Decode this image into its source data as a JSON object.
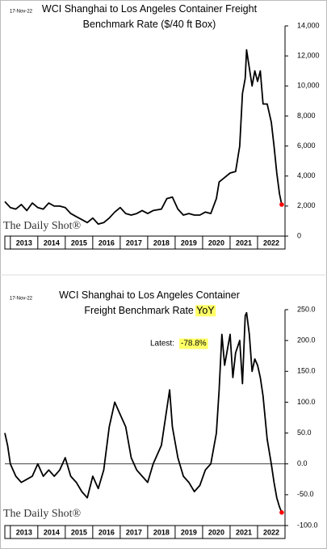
{
  "chart_data": [
    {
      "type": "line",
      "title": [
        "WCI Shanghai to Los Angeles Container Freight",
        "Benchmark Rate ($/40 ft Box)"
      ],
      "date_note": "17-Nov-22",
      "watermark": "The Daily Shot®",
      "x": [
        2012.8,
        2012.9,
        2013.0,
        2013.2,
        2013.4,
        2013.6,
        2013.8,
        2014.0,
        2014.2,
        2014.4,
        2014.6,
        2014.8,
        2015.0,
        2015.2,
        2015.4,
        2015.6,
        2015.8,
        2016.0,
        2016.2,
        2016.4,
        2016.6,
        2016.8,
        2017.0,
        2017.2,
        2017.4,
        2017.6,
        2017.8,
        2018.0,
        2018.2,
        2018.5,
        2018.7,
        2018.9,
        2019.1,
        2019.3,
        2019.5,
        2019.7,
        2019.9,
        2020.1,
        2020.3,
        2020.5,
        2020.6,
        2020.8,
        2021.0,
        2021.2,
        2021.35,
        2021.45,
        2021.55,
        2021.6,
        2021.7,
        2021.8,
        2021.9,
        2022.0,
        2022.1,
        2022.2,
        2022.35,
        2022.5,
        2022.6,
        2022.7,
        2022.8,
        2022.88
      ],
      "series": [
        {
          "color": "#000000",
          "end_marker_color": "#ff0000",
          "values": [
            2300,
            2100,
            1900,
            1800,
            2100,
            1700,
            2200,
            1900,
            1800,
            2200,
            2000,
            2000,
            1900,
            1500,
            1300,
            1100,
            900,
            1200,
            800,
            900,
            1200,
            1600,
            1900,
            1500,
            1400,
            1500,
            1700,
            1500,
            1700,
            1800,
            2500,
            2600,
            1800,
            1400,
            1500,
            1400,
            1400,
            1600,
            1500,
            2500,
            3600,
            3900,
            4200,
            4300,
            6000,
            9500,
            10500,
            12400,
            11200,
            10000,
            11000,
            10300,
            11000,
            8800,
            8800,
            7600,
            6000,
            4200,
            2800,
            2100
          ]
        }
      ],
      "xlim": [
        2012.8,
        2023.0
      ],
      "xticks": [
        {
          "value": 2013.5,
          "label": "2013"
        },
        {
          "value": 2014.5,
          "label": "2014"
        },
        {
          "value": 2015.5,
          "label": "2015"
        },
        {
          "value": 2016.5,
          "label": "2016"
        },
        {
          "value": 2017.5,
          "label": "2017"
        },
        {
          "value": 2018.5,
          "label": "2018"
        },
        {
          "value": 2019.5,
          "label": "2019"
        },
        {
          "value": 2020.5,
          "label": "2020"
        },
        {
          "value": 2021.5,
          "label": "2021"
        },
        {
          "value": 2022.5,
          "label": "2022"
        }
      ],
      "ylim": [
        0,
        14000
      ],
      "yticks": [
        0,
        {
          "value": 2000,
          "label": "2,000"
        },
        {
          "value": 4000,
          "label": "4,000"
        },
        {
          "value": 6000,
          "label": "6,000"
        },
        {
          "value": 8000,
          "label": "8,000"
        },
        {
          "value": 10000,
          "label": "10,000"
        },
        {
          "value": 12000,
          "label": "12,000"
        },
        {
          "value": 14000,
          "label": "14,000"
        }
      ]
    },
    {
      "type": "line",
      "title": [
        "WCI Shanghai to Los Angeles Container",
        "Freight Benchmark Rate"
      ],
      "title_highlight": "YoY",
      "date_note": "17-Nov-22",
      "watermark": "The Daily Shot®",
      "annotation": "Latest:",
      "x": [
        2012.8,
        2012.9,
        2013.0,
        2013.2,
        2013.4,
        2013.6,
        2013.8,
        2014.0,
        2014.2,
        2014.4,
        2014.6,
        2014.8,
        2015.0,
        2015.2,
        2015.4,
        2015.6,
        2015.8,
        2016.0,
        2016.2,
        2016.4,
        2016.6,
        2016.8,
        2017.0,
        2017.2,
        2017.4,
        2017.6,
        2017.8,
        2018.0,
        2018.2,
        2018.5,
        2018.7,
        2018.8,
        2018.9,
        2019.1,
        2019.3,
        2019.5,
        2019.7,
        2019.9,
        2020.1,
        2020.3,
        2020.5,
        2020.6,
        2020.7,
        2020.8,
        2021.0,
        2021.1,
        2021.2,
        2021.35,
        2021.45,
        2021.55,
        2021.6,
        2021.7,
        2021.8,
        2021.9,
        2022.0,
        2022.1,
        2022.2,
        2022.35,
        2022.5,
        2022.6,
        2022.7,
        2022.8,
        2022.88
      ],
      "series": [
        {
          "color": "#000000",
          "end_marker_color": "#ff0000",
          "values": [
            50,
            30,
            0,
            -20,
            -30,
            -25,
            -20,
            0,
            -20,
            -10,
            -20,
            -10,
            10,
            -20,
            -30,
            -45,
            -55,
            -20,
            -40,
            -10,
            60,
            100,
            80,
            60,
            10,
            -10,
            -20,
            -30,
            0,
            30,
            90,
            120,
            60,
            10,
            -20,
            -30,
            -45,
            -35,
            -10,
            0,
            50,
            120,
            210,
            160,
            210,
            140,
            180,
            200,
            130,
            240,
            245,
            210,
            150,
            170,
            160,
            140,
            110,
            40,
            0,
            -30,
            -55,
            -70,
            -78.8
          ],
          "value_labels": [
            null,
            null,
            null,
            null,
            null,
            null,
            null,
            null,
            null,
            null,
            null,
            null,
            null,
            null,
            null,
            null,
            null,
            null,
            null,
            null,
            null,
            null,
            null,
            null,
            null,
            null,
            null,
            null,
            null,
            null,
            null,
            null,
            null,
            null,
            null,
            null,
            null,
            null,
            null,
            null,
            null,
            null,
            null,
            null,
            null,
            null,
            null,
            null,
            null,
            null,
            null,
            null,
            null,
            null,
            null,
            null,
            null,
            null,
            null,
            null,
            null,
            null,
            "-78.8%"
          ]
        }
      ],
      "xlim": [
        2012.8,
        2023.0
      ],
      "xticks": [
        {
          "value": 2013.5,
          "label": "2013"
        },
        {
          "value": 2014.5,
          "label": "2014"
        },
        {
          "value": 2015.5,
          "label": "2015"
        },
        {
          "value": 2016.5,
          "label": "2016"
        },
        {
          "value": 2017.5,
          "label": "2017"
        },
        {
          "value": 2018.5,
          "label": "2018"
        },
        {
          "value": 2019.5,
          "label": "2019"
        },
        {
          "value": 2020.5,
          "label": "2020"
        },
        {
          "value": 2021.5,
          "label": "2021"
        },
        {
          "value": 2022.5,
          "label": "2022"
        }
      ],
      "ylim": [
        -100,
        250
      ],
      "yticks": [
        {
          "value": -100,
          "label": "-100.0"
        },
        {
          "value": -50,
          "label": "-50.0"
        },
        {
          "value": 0,
          "label": "0.0"
        },
        {
          "value": 50,
          "label": "50.0"
        },
        {
          "value": 100,
          "label": "100.0"
        },
        {
          "value": 150,
          "label": "150.0"
        },
        {
          "value": 200,
          "label": "200.0"
        },
        {
          "value": 250,
          "label": "250.0"
        }
      ]
    }
  ]
}
